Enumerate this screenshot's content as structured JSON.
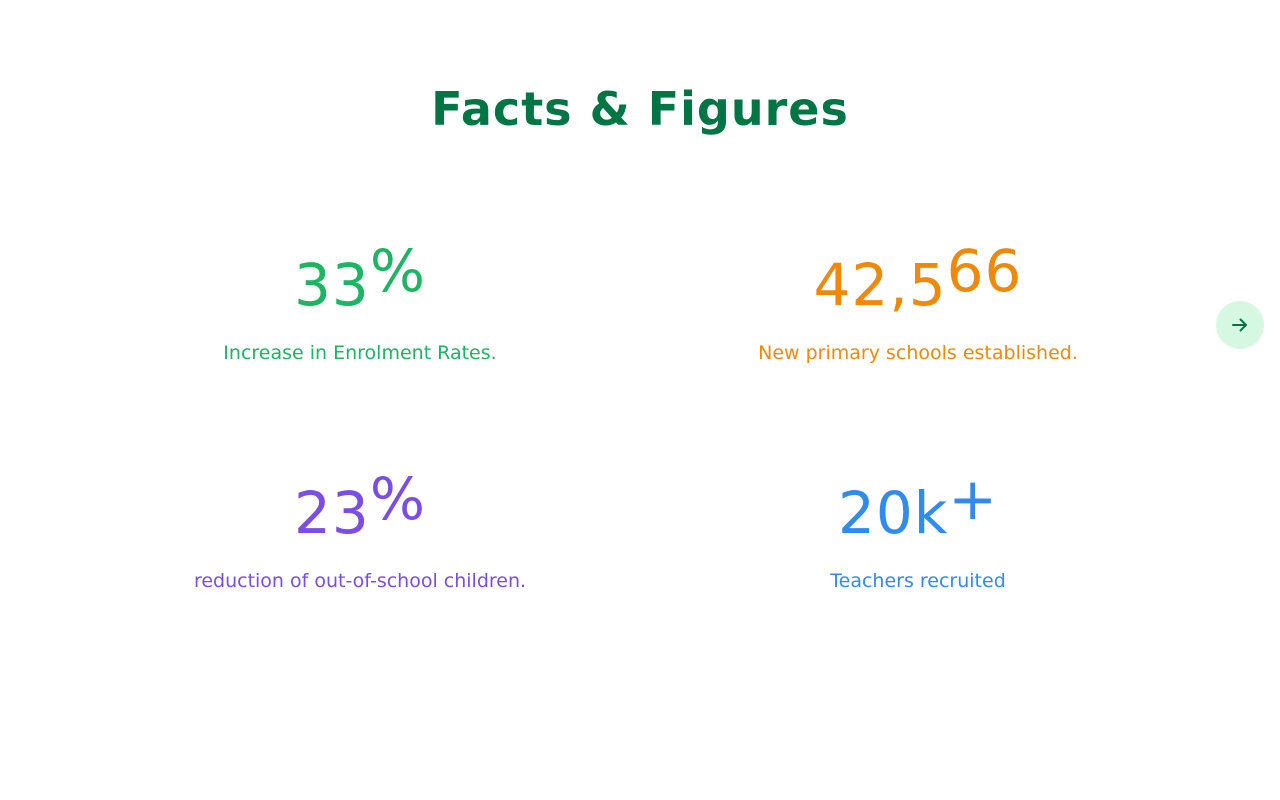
{
  "section": {
    "title": "Facts & Figures",
    "title_color": "#017544"
  },
  "stats": [
    {
      "value_main": "33",
      "value_suffix": "%",
      "label": "Increase in Enrolment Rates.",
      "color": "#1cb561"
    },
    {
      "value_main": "42,5",
      "value_suffix": "66",
      "label": "New primary schools established.",
      "color": "#f0890a"
    },
    {
      "value_main": "23",
      "value_suffix": "%",
      "label": "reduction of out-of-school children.",
      "color": "#7b4de8"
    },
    {
      "value_main": "20k",
      "value_suffix": "+",
      "label": "Teachers recruited",
      "color": "#2f8bf0"
    }
  ],
  "carousel": {
    "next_icon": "arrow-right-icon",
    "button_bg": "#d6f8e3",
    "arrow_color": "#017544"
  }
}
